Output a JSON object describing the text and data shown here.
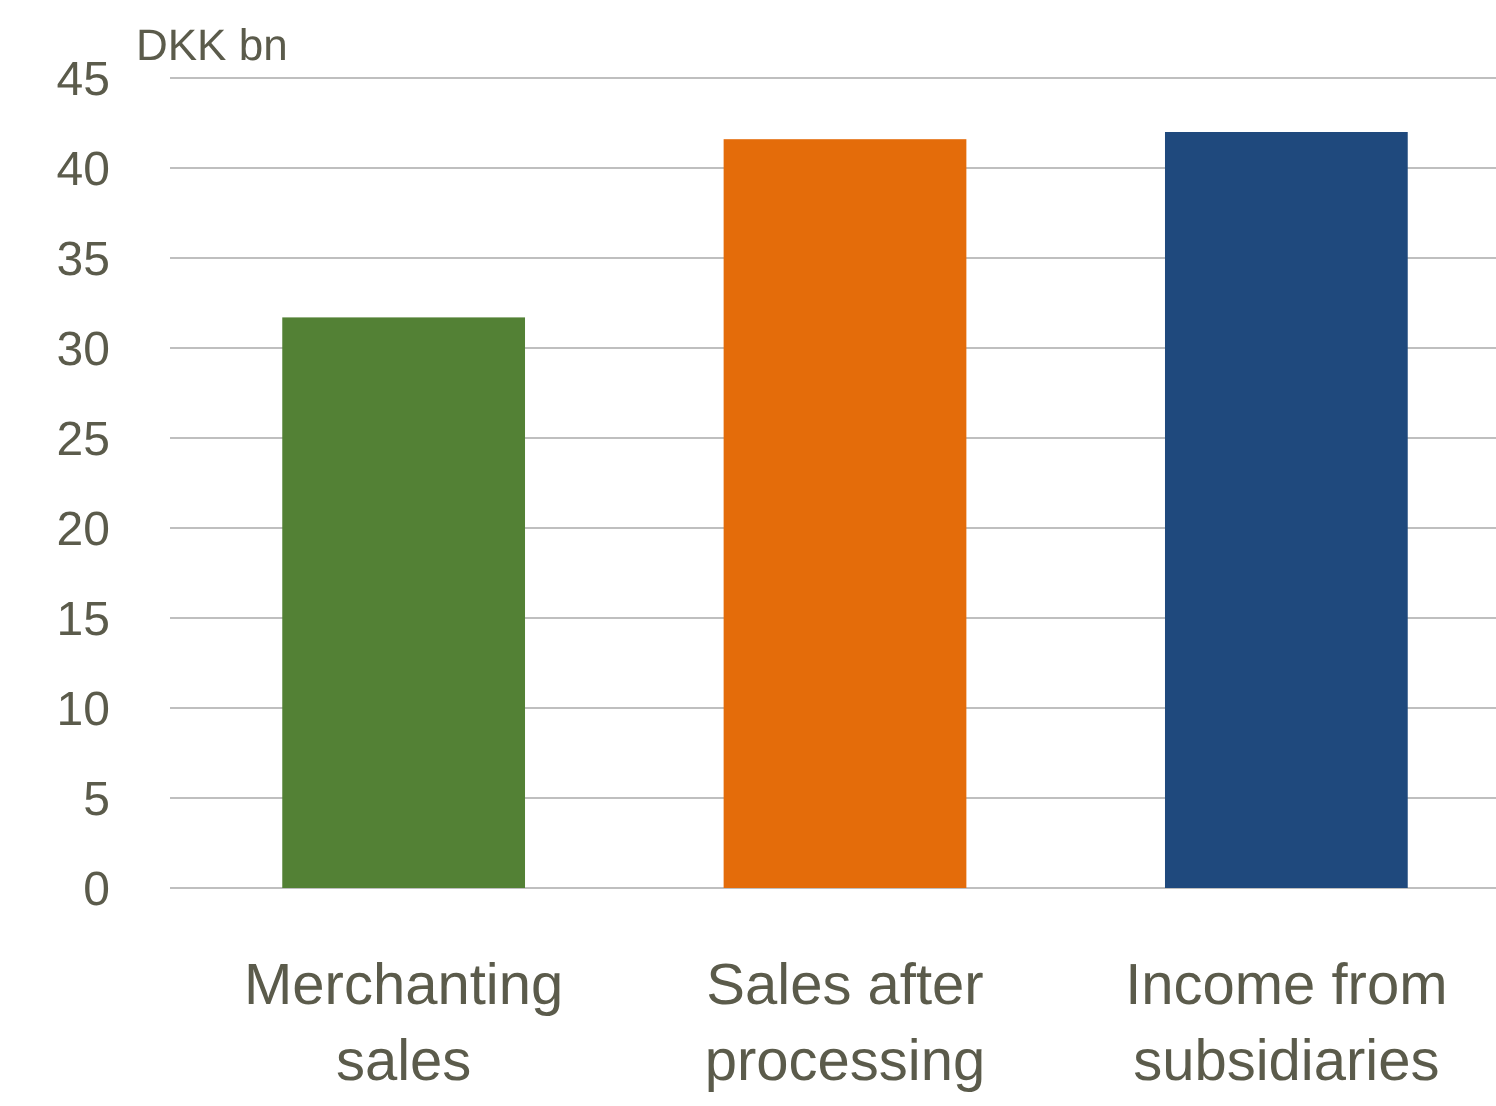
{
  "chart_data": {
    "type": "bar",
    "ylabel": "DKK bn",
    "categories": [
      "Merchanting sales",
      "Sales after processing",
      "Income from subsidiaries"
    ],
    "values": [
      31.7,
      41.6,
      42.0
    ],
    "colors": [
      "#538135",
      "#e46c0a",
      "#1f497d"
    ],
    "ylim": [
      0,
      45
    ],
    "yticks": [
      0,
      5,
      10,
      15,
      20,
      25,
      30,
      35,
      40,
      45
    ],
    "grid": "y"
  }
}
